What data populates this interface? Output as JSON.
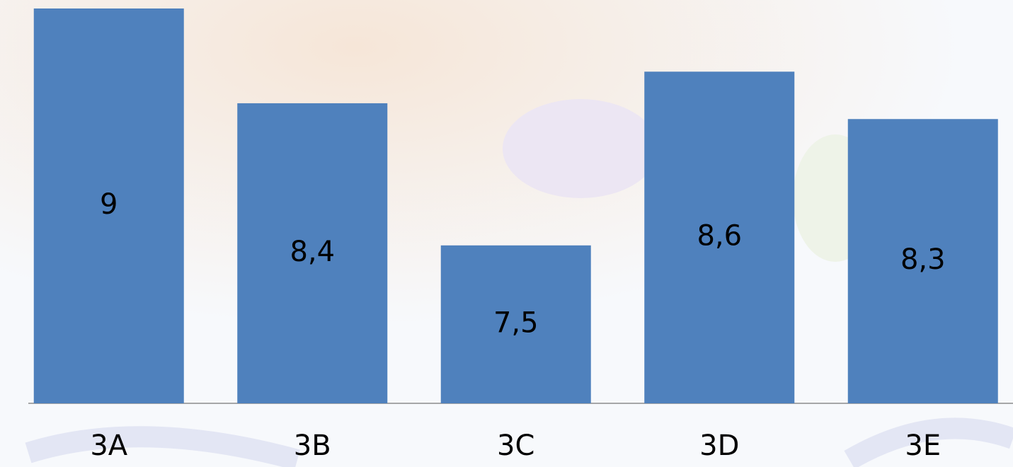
{
  "chart_data": {
    "type": "bar",
    "categories": [
      "3A",
      "3B",
      "3C",
      "3D",
      "3E"
    ],
    "values": [
      9,
      8.4,
      7.5,
      8.6,
      8.3
    ],
    "value_labels": [
      "9",
      "8,4",
      "7,5",
      "8,6",
      "8,3"
    ],
    "color": "#4f81bd",
    "ylim": [
      6.5,
      9
    ]
  }
}
